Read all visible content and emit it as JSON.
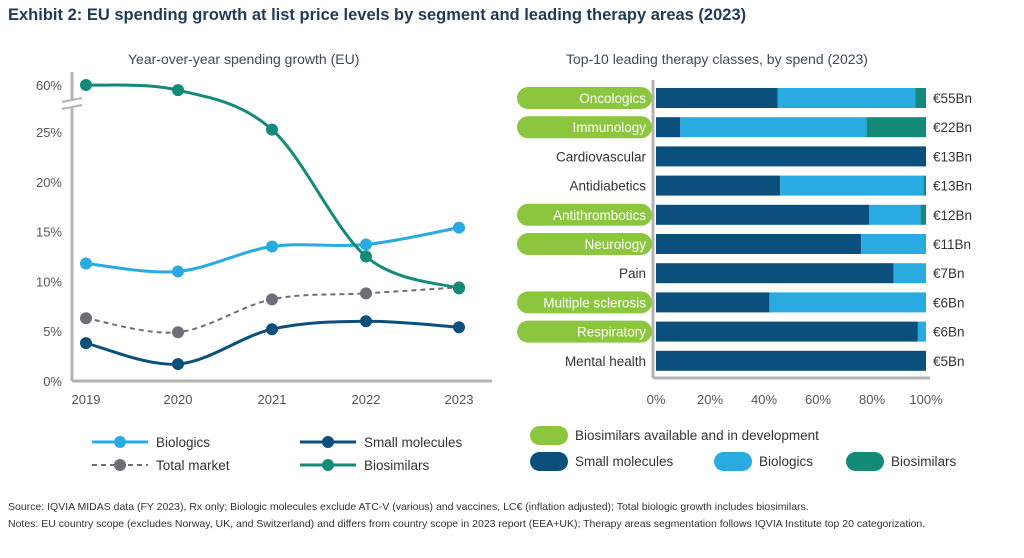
{
  "header": {
    "title": "Exhibit 2: EU spending growth at list price levels by segment and leading therapy areas (2023)"
  },
  "chart_data": [
    {
      "type": "line",
      "title": "Year-over-year spending growth (EU)",
      "x": [
        "2019",
        "2020",
        "2021",
        "2022",
        "2023"
      ],
      "y_ticks": [
        "0%",
        "5%",
        "10%",
        "15%",
        "20%",
        "25%",
        "60%"
      ],
      "axis_break": "between 25% and 60%",
      "ylim": [
        0,
        60
      ],
      "grid": false,
      "legend_position": "bottom",
      "series": [
        {
          "name": "Biologics",
          "color": "#29abe2",
          "style": "solid",
          "values": [
            11.8,
            11.0,
            13.5,
            13.7,
            15.4
          ]
        },
        {
          "name": "Small molecules",
          "color": "#0b4f7c",
          "style": "solid",
          "values": [
            3.8,
            1.7,
            5.2,
            6.0,
            5.4
          ]
        },
        {
          "name": "Total market",
          "color": "#6d6e78",
          "style": "dashed",
          "values": [
            6.3,
            4.9,
            8.2,
            8.8,
            9.4
          ]
        },
        {
          "name": "Biosimilars",
          "color": "#148a78",
          "style": "solid",
          "values": [
            60,
            56,
            25.3,
            12.5,
            9.3
          ]
        }
      ]
    },
    {
      "type": "bar",
      "orientation": "horizontal",
      "stacked": true,
      "title": "Top-10 leading therapy classes, by spend (2023)",
      "x_ticks": [
        "0%",
        "20%",
        "40%",
        "60%",
        "80%",
        "100%"
      ],
      "xlim": [
        0,
        100
      ],
      "legend_position": "bottom",
      "categories": [
        "Oncologics",
        "Immunology",
        "Cardiovascular",
        "Antidiabetics",
        "Antithrombotics",
        "Neurology",
        "Pain",
        "Multiple sclerosis",
        "Respiratory",
        "Mental health"
      ],
      "biosimilars_available": [
        true,
        true,
        false,
        false,
        true,
        true,
        false,
        true,
        true,
        false
      ],
      "spend_labels": [
        "€55Bn",
        "€22Bn",
        "€13Bn",
        "€13Bn",
        "€12Bn",
        "€11Bn",
        "€7Bn",
        "€6Bn",
        "€6Bn",
        "€5Bn"
      ],
      "series": [
        {
          "name": "Small molecules",
          "color": "#0b4f7c",
          "values": [
            45,
            9,
            100,
            46,
            79,
            76,
            88,
            42,
            97,
            100
          ]
        },
        {
          "name": "Biologics",
          "color": "#29abe2",
          "values": [
            51,
            69,
            0,
            53,
            19,
            24,
            12,
            58,
            3,
            0
          ]
        },
        {
          "name": "Biosimilars",
          "color": "#148a78",
          "values": [
            4,
            22,
            0,
            1,
            2,
            0,
            0,
            0,
            0,
            0
          ]
        }
      ],
      "highlight_legend": {
        "label": "Biosimilars available and in development",
        "color": "#8cc63f"
      }
    }
  ],
  "legends": {
    "left": [
      "Biologics",
      "Small molecules",
      "Total market",
      "Biosimilars"
    ],
    "right_top": "Biosimilars available and in development",
    "right_bottom": [
      "Small molecules",
      "Biologics",
      "Biosimilars"
    ]
  },
  "footer": {
    "source": "Source: IQVIA MIDAS data (FY 2023), Rx only; Biologic molecules exclude ATC-V (various) and vaccines, LC€ (inflation adjusted); Total biologic growth includes biosimilars.",
    "notes": "Notes: EU country scope (excludes Norway, UK, and Switzerland) and differs from country scope in 2023 report (EEA+UK); Therapy areas segmentation follows IQVIA Institute top 20 categorization."
  }
}
